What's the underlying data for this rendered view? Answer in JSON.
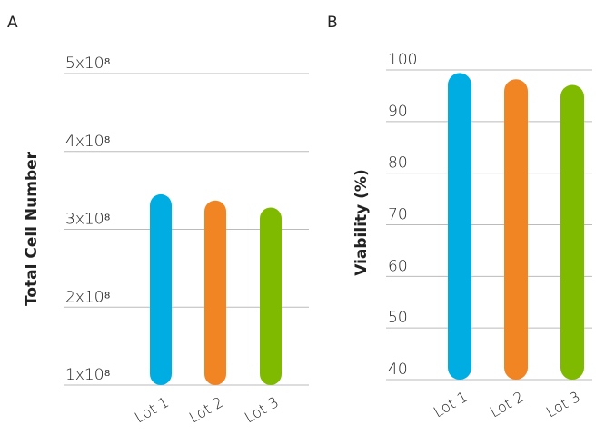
{
  "chart_data": [
    {
      "type": "bar",
      "panel": "A",
      "y_label": "Total Cell Number",
      "categories": [
        "Lot 1",
        "Lot 2",
        "Lot 3"
      ],
      "values": [
        345000000,
        337000000,
        328000000
      ],
      "colors": [
        "#00ade2",
        "#f18523",
        "#7fba00"
      ],
      "ylim": [
        100000000,
        500000000
      ],
      "yticks": [
        {
          "value": 100000000,
          "label": "1x10⁸"
        },
        {
          "value": 200000000,
          "label": "2x10⁸"
        },
        {
          "value": 300000000,
          "label": "3x10⁸"
        },
        {
          "value": 400000000,
          "label": "4x10⁸"
        },
        {
          "value": 500000000,
          "label": "5x10⁸"
        }
      ],
      "grid": true
    },
    {
      "type": "bar",
      "panel": "B",
      "y_label": "Viability (%)",
      "categories": [
        "Lot 1",
        "Lot 2",
        "Lot 3"
      ],
      "values": [
        99.4,
        98.2,
        97.1
      ],
      "colors": [
        "#00ade2",
        "#f18523",
        "#7fba00"
      ],
      "ylim": [
        40,
        100
      ],
      "yticks": [
        40,
        50,
        60,
        70,
        80,
        90,
        100
      ],
      "grid": true
    }
  ]
}
